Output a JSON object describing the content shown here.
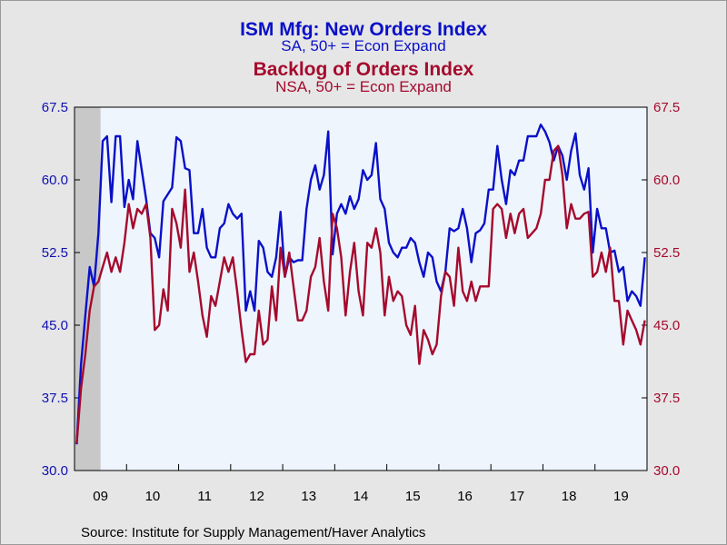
{
  "colors": {
    "background": "#e6e6e6",
    "plot_background": "#eef5fc",
    "recession_shade": "#c8c8c8",
    "series1": "#0a10c8",
    "series2": "#a50a2d",
    "tick_text_left": "#1010b0",
    "tick_text_right": "#a50a2d"
  },
  "chart_data": {
    "type": "line",
    "titles": [
      {
        "text": "ISM Mfg: New Orders Index",
        "color": "#0a10c8",
        "style": "bold"
      },
      {
        "text": "SA, 50+ = Econ Expand",
        "color": "#0a10c8",
        "style": "normal"
      },
      {
        "text": "Backlog of Orders Index",
        "color": "#a50a2d",
        "style": "bold"
      },
      {
        "text": "NSA, 50+ = Econ Expand",
        "color": "#a50a2d",
        "style": "normal"
      }
    ],
    "source": "Source:  Institute for Supply Management/Haver Analytics",
    "ylim": [
      30.0,
      67.5
    ],
    "y_ticks": [
      "30.0",
      "37.5",
      "45.0",
      "52.5",
      "60.0",
      "67.5"
    ],
    "x_labels": [
      "09",
      "10",
      "11",
      "12",
      "13",
      "14",
      "15",
      "16",
      "17",
      "18",
      "19"
    ],
    "x_start": "2009-01",
    "x_end": "2019-12",
    "recession": {
      "start": "2009-01",
      "end": "2009-06"
    },
    "series": [
      {
        "name": "ISM Mfg: New Orders Index",
        "axis": "left",
        "values": [
          32.7,
          41.0,
          46.0,
          51.0,
          49.0,
          54.5,
          64.0,
          64.5,
          57.7,
          64.5,
          64.5,
          57.2,
          60.0,
          58.0,
          64.0,
          61.0,
          58.0,
          54.5,
          54.0,
          52.0,
          57.8,
          58.5,
          59.2,
          64.4,
          64.0,
          61.2,
          61.0,
          54.5,
          54.5,
          57.0,
          53.0,
          52.0,
          52.0,
          55.0,
          55.5,
          57.5,
          56.5,
          56.0,
          56.5,
          46.5,
          48.5,
          46.5,
          53.7,
          53.0,
          50.5,
          50.0,
          52.0,
          56.7,
          50.0,
          52.0,
          51.5,
          51.7,
          51.7,
          57.0,
          60.0,
          61.5,
          59.0,
          60.5,
          65.0,
          52.3,
          56.5,
          57.5,
          56.5,
          58.3,
          57.0,
          58.0,
          61.0,
          60.0,
          60.5,
          63.8,
          58.0,
          57.0,
          53.5,
          52.5,
          52.0,
          53.0,
          53.0,
          54.0,
          53.5,
          51.5,
          50.0,
          52.5,
          52.0,
          49.5,
          48.5,
          50.5,
          55.0,
          54.7,
          55.0,
          57.0,
          55.0,
          51.5,
          54.5,
          54.8,
          55.5,
          59.0,
          59.0,
          63.5,
          60.0,
          57.5,
          61.0,
          60.5,
          62.0,
          62.0,
          64.5,
          64.5,
          64.5,
          65.7,
          65.0,
          63.9,
          62.0,
          63.5,
          62.5,
          60.0,
          63.0,
          64.8,
          60.5,
          59.0,
          61.2,
          52.5,
          57.0,
          55.0,
          55.0,
          52.5,
          52.7,
          50.5,
          51.0,
          47.5,
          48.5,
          48.0,
          47.0,
          52.0
        ]
      },
      {
        "name": "Backlog of Orders Index",
        "axis": "right",
        "values": [
          32.8,
          38.5,
          42.0,
          46.5,
          49.0,
          49.5,
          51.0,
          52.5,
          50.5,
          52.0,
          50.5,
          53.5,
          57.5,
          55.0,
          57.0,
          56.5,
          57.5,
          54.0,
          44.5,
          45.0,
          48.7,
          46.5,
          57.0,
          55.5,
          53.0,
          59.0,
          50.5,
          52.5,
          49.5,
          46.0,
          43.8,
          48.0,
          47.0,
          49.5,
          52.0,
          50.5,
          52.0,
          48.5,
          44.5,
          41.2,
          42.0,
          42.0,
          46.5,
          43.0,
          43.5,
          49.0,
          45.5,
          53.0,
          50.0,
          52.5,
          49.0,
          45.5,
          45.5,
          46.5,
          50.0,
          51.0,
          54.0,
          49.5,
          46.5,
          56.5,
          55.0,
          52.0,
          46.0,
          50.5,
          53.5,
          48.5,
          46.0,
          53.5,
          53.0,
          55.0,
          52.5,
          46.0,
          50.0,
          47.5,
          48.5,
          48.0,
          45.0,
          44.0,
          47.0,
          41.0,
          44.5,
          43.5,
          42.0,
          43.0,
          48.0,
          50.5,
          50.0,
          47.0,
          53.0,
          48.5,
          47.5,
          49.5,
          47.5,
          49.0,
          49.0,
          49.0,
          57.0,
          57.5,
          57.0,
          54.0,
          56.5,
          54.5,
          56.5,
          57.0,
          54.0,
          54.5,
          55.0,
          56.5,
          60.0,
          60.0,
          63.0,
          63.5,
          60.5,
          55.0,
          57.5,
          56.0,
          56.0,
          56.5,
          56.7,
          50.0,
          50.5,
          52.5,
          50.5,
          53.0,
          47.5,
          47.5,
          43.0,
          46.5,
          45.5,
          44.5,
          43.0,
          45.5
        ]
      }
    ]
  }
}
